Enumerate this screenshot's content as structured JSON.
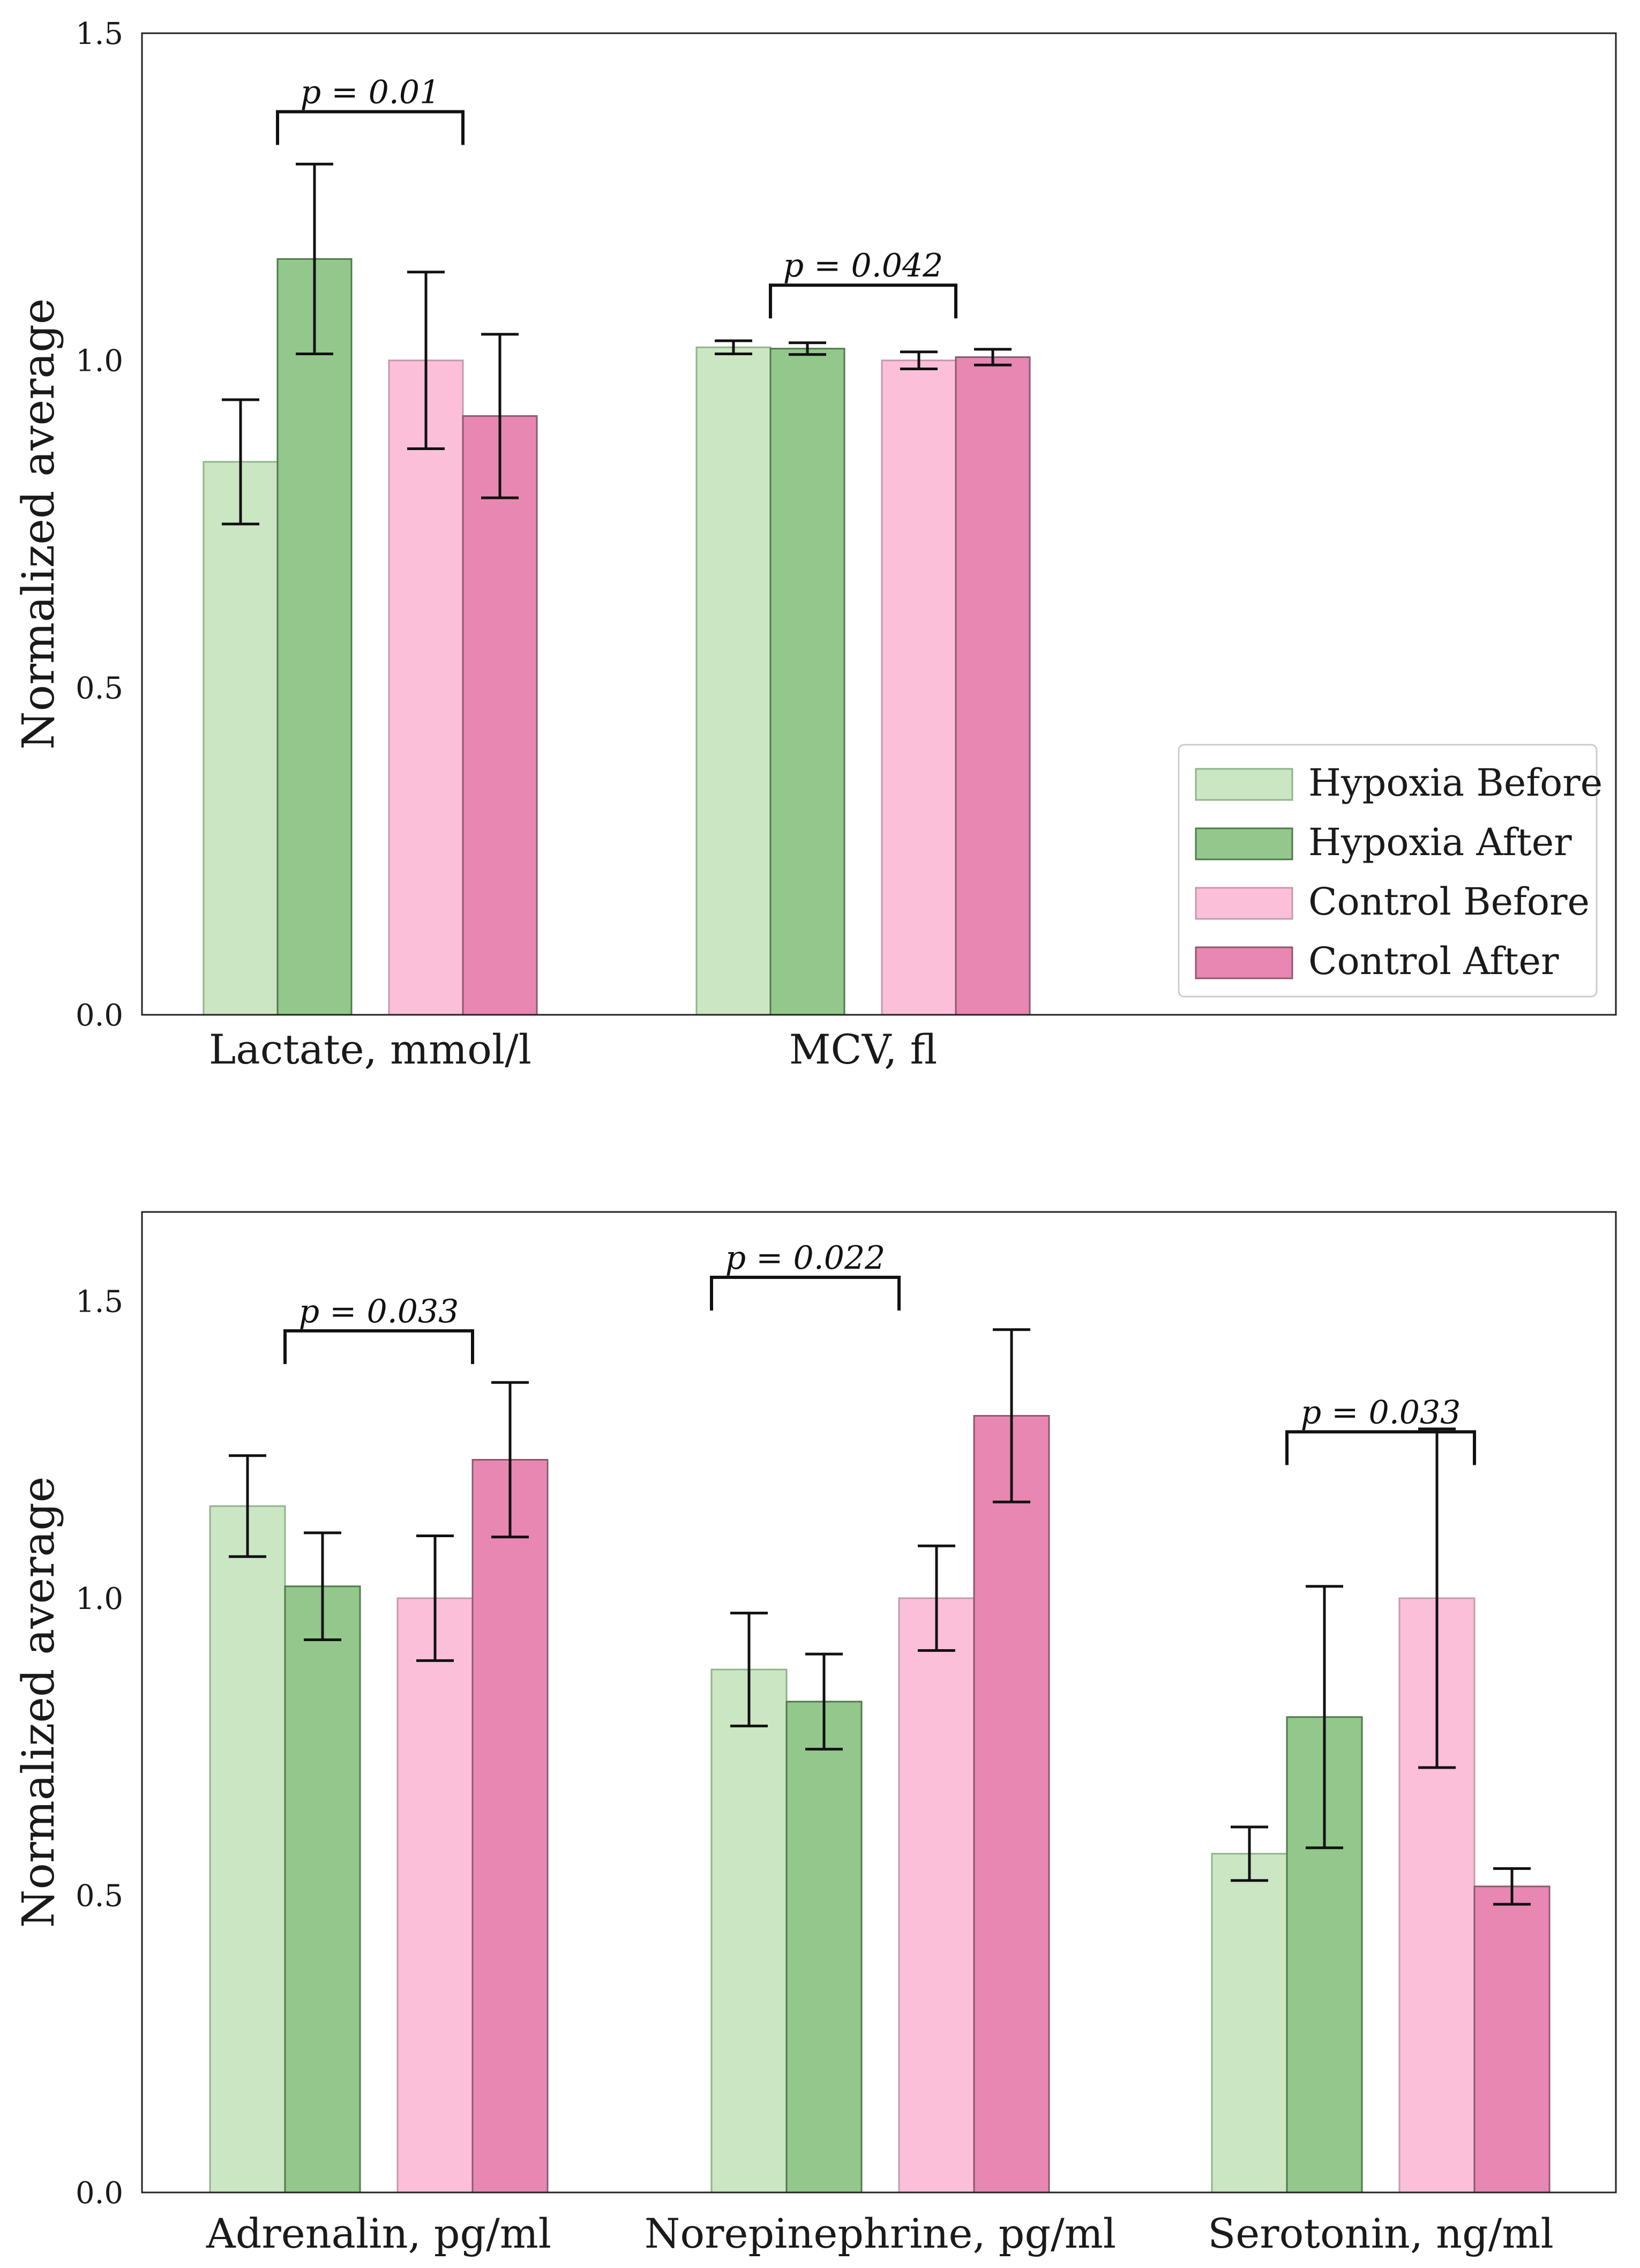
{
  "colors": {
    "hypoxia_before": "#cbe6c2",
    "hypoxia_after": "#93c78b",
    "control_before": "#fbbfd9",
    "control_after": "#e887b2"
  },
  "chart_data": [
    {
      "type": "bar",
      "ylabel": "Normalized average",
      "ylim": [
        0,
        1.5
      ],
      "yticks": [
        0.0,
        0.5,
        1.0,
        1.5
      ],
      "tick_labels": [
        "0.0",
        "0.5",
        "1.0",
        "1.5"
      ],
      "categories": [
        "Lactate, mmol/l",
        "MCV, fl"
      ],
      "legend": {
        "placement": "lower-right"
      },
      "series": [
        {
          "name": "Hypoxia Before",
          "values": [
            0.845,
            1.02
          ],
          "errors": [
            0.095,
            0.01
          ]
        },
        {
          "name": "Hypoxia After",
          "values": [
            1.155,
            1.018
          ],
          "errors": [
            0.145,
            0.009
          ]
        },
        {
          "name": "Control Before",
          "values": [
            1.0,
            1.0
          ],
          "errors": [
            0.135,
            0.013
          ]
        },
        {
          "name": "Control After",
          "values": [
            0.915,
            1.005
          ],
          "errors": [
            0.125,
            0.012
          ]
        }
      ],
      "annotations": [
        {
          "category": 0,
          "from_series": 1,
          "to_series": 3,
          "y": 1.38,
          "label": "p = 0.01"
        },
        {
          "category": 1,
          "from_series": 1,
          "to_series": 3,
          "y": 1.115,
          "label": "p = 0.042"
        }
      ]
    },
    {
      "type": "bar",
      "ylabel": "Normalized average",
      "ylim": [
        0,
        1.65
      ],
      "yticks": [
        0.0,
        0.5,
        1.0,
        1.5
      ],
      "tick_labels": [
        "0.0",
        "0.5",
        "1.0",
        "1.5"
      ],
      "categories": [
        "Adrenalin, pg/ml",
        "Norepinephrine, pg/ml",
        "Serotonin, ng/ml"
      ],
      "series": [
        {
          "name": "Hypoxia Before",
          "values": [
            1.155,
            0.88,
            0.57
          ],
          "errors": [
            0.085,
            0.095,
            0.045
          ]
        },
        {
          "name": "Hypoxia After",
          "values": [
            1.02,
            0.826,
            0.8
          ],
          "errors": [
            0.09,
            0.08,
            0.22
          ]
        },
        {
          "name": "Control Before",
          "values": [
            1.0,
            1.0,
            1.0
          ],
          "errors": [
            0.105,
            0.088,
            0.285
          ]
        },
        {
          "name": "Control After",
          "values": [
            1.233,
            1.307,
            0.515
          ],
          "errors": [
            0.13,
            0.145,
            0.03
          ]
        }
      ],
      "annotations": [
        {
          "category": 0,
          "from_series": 1,
          "to_series": 3,
          "y": 1.45,
          "label": "p = 0.033"
        },
        {
          "category": 1,
          "from_series": 0,
          "to_series": 2,
          "y": 1.54,
          "label": "p = 0.022"
        },
        {
          "category": 2,
          "from_series": 1,
          "to_series": 3,
          "y": 1.28,
          "label": "p = 0.033"
        }
      ]
    }
  ]
}
